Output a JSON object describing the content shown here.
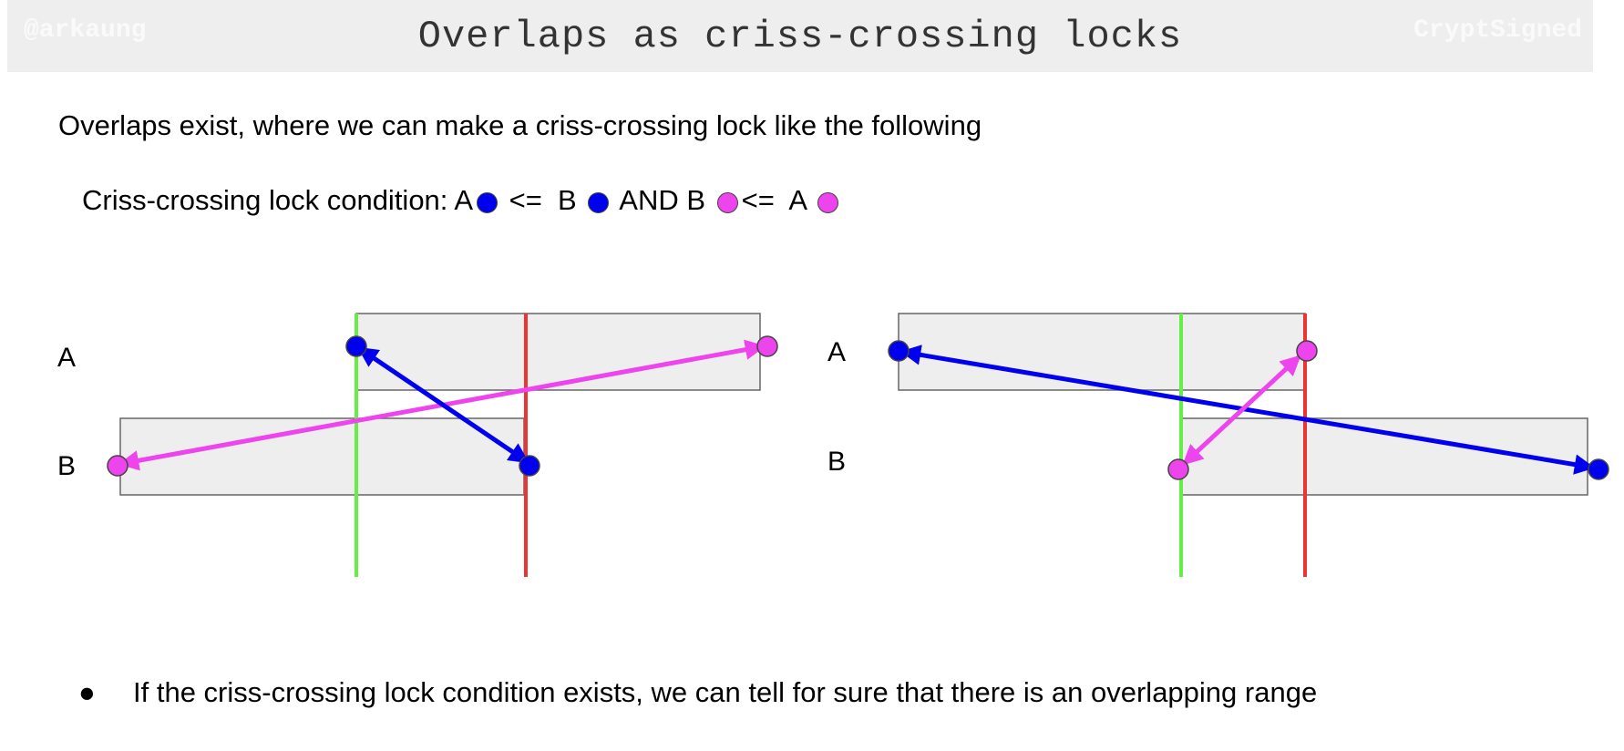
{
  "header": {
    "watermark_left": "@arkaung",
    "title": "Overlaps as criss-crossing locks",
    "watermark_right": "CryptSigned"
  },
  "intro": "Overlaps exist, where we can make a criss-crossing lock like the following",
  "condition": {
    "prefix": "Criss-crossing lock condition: A",
    "part2": "<=  B",
    "part3": "AND B",
    "part4": "<=  A"
  },
  "colors": {
    "blue": "#0000ee",
    "magenta": "#ee44ee",
    "green": "#66ee44",
    "red": "#ee3333",
    "box_fill": "#eeeeee",
    "box_stroke": "#666666"
  },
  "diagram_left": {
    "label_a": "A",
    "label_b": "B"
  },
  "diagram_right": {
    "label_a": "A",
    "label_b": "B"
  },
  "bullets": [
    "If the criss-crossing lock condition exists, we can tell for sure that there is an overlapping range"
  ]
}
